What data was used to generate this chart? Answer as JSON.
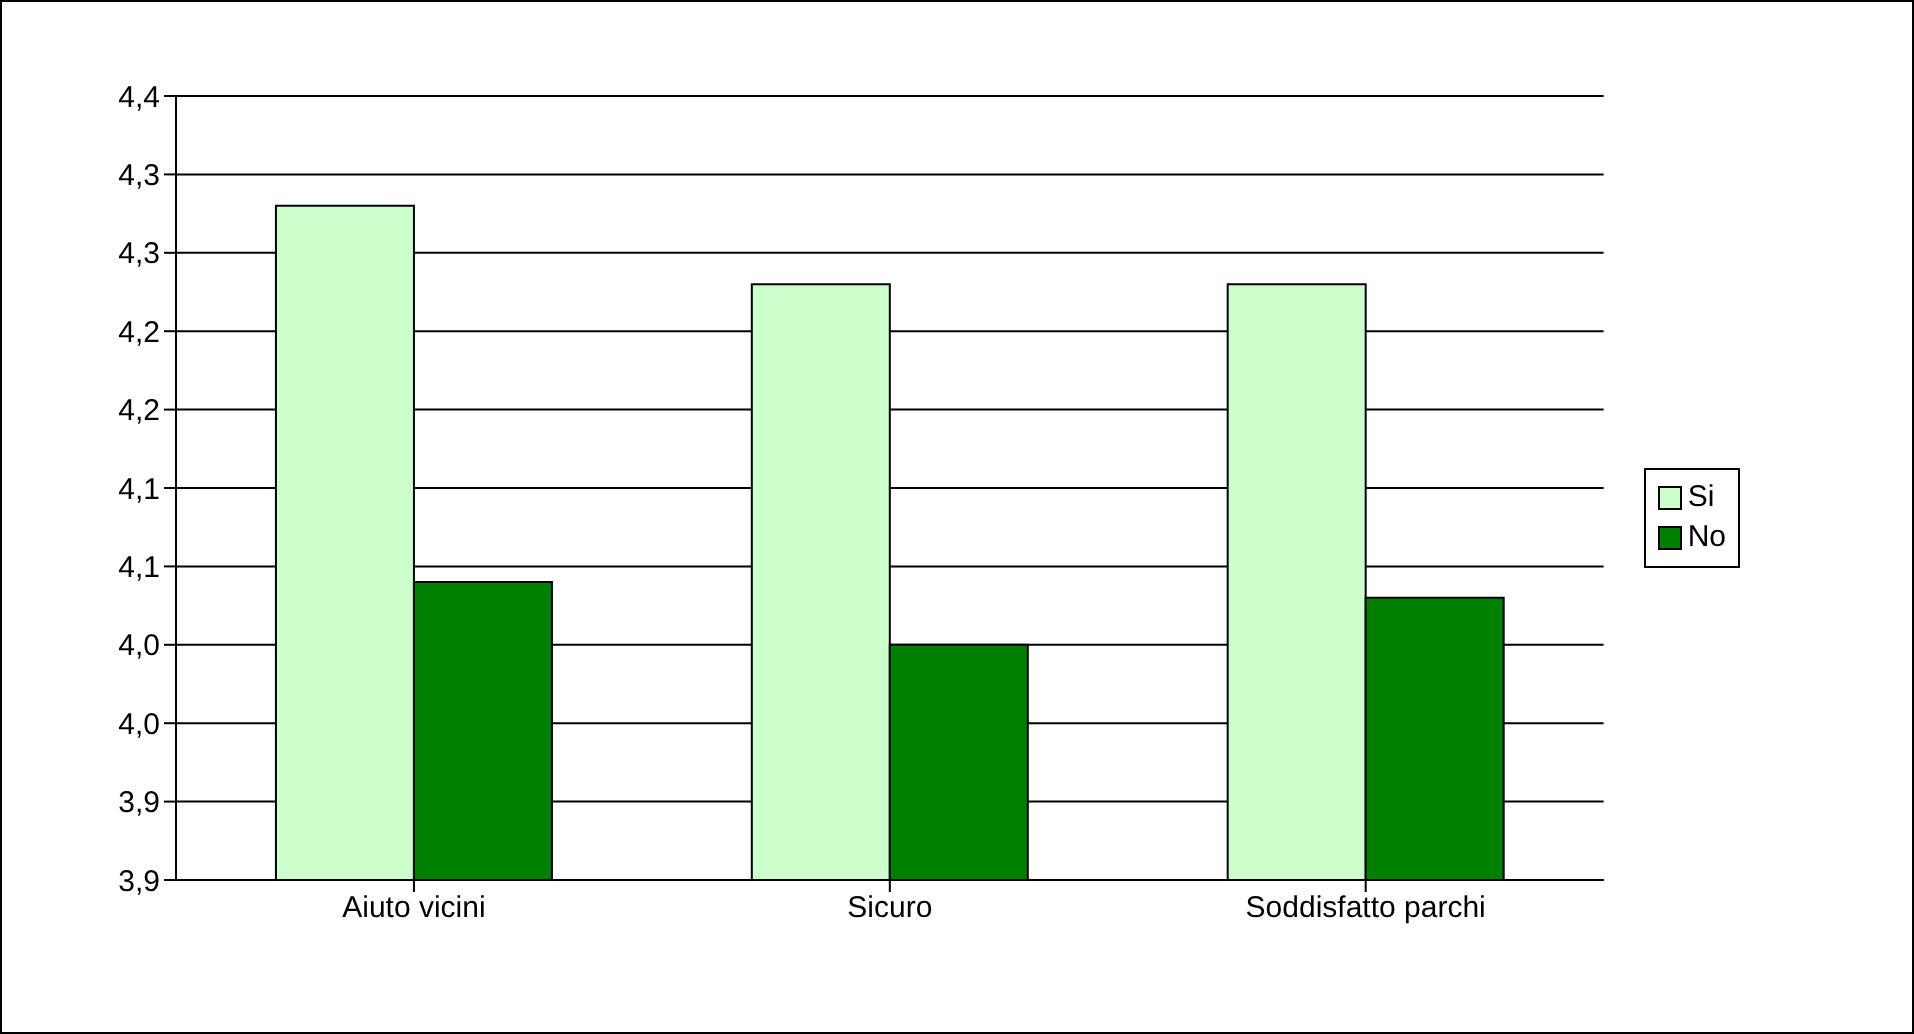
{
  "chart_data": {
    "type": "bar",
    "categories": [
      "Aiuto vicini",
      "Sicuro",
      "Soddisfatto parchi"
    ],
    "series": [
      {
        "name": "Si",
        "color": "#ccffcc",
        "values": [
          4.28,
          4.23,
          4.23
        ]
      },
      {
        "name": "No",
        "color": "#008000",
        "values": [
          4.04,
          4.0,
          4.03
        ]
      }
    ],
    "ylim": [
      3.85,
      4.35
    ],
    "yticks": [
      {
        "value": 3.85,
        "label": "3,9"
      },
      {
        "value": 3.9,
        "label": "3,9"
      },
      {
        "value": 3.95,
        "label": "4,0"
      },
      {
        "value": 4.0,
        "label": "4,0"
      },
      {
        "value": 4.05,
        "label": "4,1"
      },
      {
        "value": 4.1,
        "label": "4,1"
      },
      {
        "value": 4.15,
        "label": "4,2"
      },
      {
        "value": 4.2,
        "label": "4,2"
      },
      {
        "value": 4.25,
        "label": "4,3"
      },
      {
        "value": 4.3,
        "label": "4,3"
      },
      {
        "value": 4.35,
        "label": "4,4"
      }
    ],
    "grid": "y",
    "legend": "right"
  }
}
